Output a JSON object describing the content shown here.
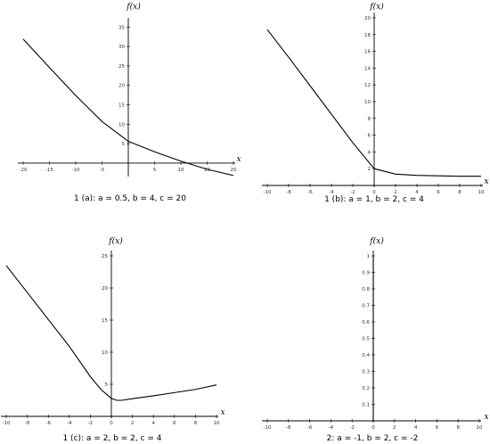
{
  "chart_data": [
    {
      "type": "line",
      "caption": "1 (a): a = 0.5, b = 4, c = 20",
      "xlabel": "x",
      "ylabel": "f(x)",
      "xlim": [
        -20,
        20
      ],
      "ylim": [
        -3,
        36
      ],
      "xticks": [
        -20,
        -15,
        -10,
        -5,
        5,
        10,
        15,
        20
      ],
      "yticks": [
        5,
        10,
        15,
        20,
        25,
        30,
        35
      ],
      "color": "#000000",
      "series": [
        {
          "x": [
            -20,
            -15,
            -10,
            -5,
            0,
            5,
            10,
            15,
            20
          ],
          "y": [
            31.9,
            24.6,
            17.4,
            10.7,
            5.6,
            2.9,
            0.5,
            -1.6,
            -3.2
          ]
        }
      ]
    },
    {
      "type": "line",
      "caption": "1 (b): a = 1, b = 2, c = 4",
      "xlabel": "x",
      "ylabel": "f(x)",
      "xlim": [
        -10,
        10
      ],
      "ylim": [
        0,
        20
      ],
      "xticks": [
        -10,
        -8,
        -6,
        -4,
        -2,
        0,
        2,
        4,
        6,
        8,
        10
      ],
      "yticks": [
        2,
        4,
        6,
        8,
        10,
        12,
        14,
        16,
        18,
        20
      ],
      "color": "#000000",
      "series": [
        {
          "x": [
            -10,
            -8,
            -6,
            -4,
            -2,
            0,
            2,
            4,
            6,
            8,
            10
          ],
          "y": [
            18.6,
            15.3,
            11.9,
            8.5,
            5.1,
            2.0,
            1.35,
            1.2,
            1.15,
            1.1,
            1.1
          ]
        }
      ]
    },
    {
      "type": "line",
      "caption": "1 (c): a = 2, b = 2, c = 4",
      "xlabel": "x",
      "ylabel": "f(x)",
      "xlim": [
        -10,
        10
      ],
      "ylim": [
        0,
        25
      ],
      "xticks": [
        -10,
        -8,
        -6,
        -4,
        -2,
        0,
        2,
        4,
        6,
        8,
        10
      ],
      "yticks": [
        5,
        10,
        15,
        20,
        25
      ],
      "color": "#000000",
      "series": [
        {
          "x": [
            -10,
            -8,
            -6,
            -4,
            -2,
            -1,
            0,
            0.5,
            1,
            2,
            4,
            6,
            8,
            10
          ],
          "y": [
            23.5,
            19.3,
            15.1,
            10.9,
            6.2,
            4.2,
            2.8,
            2.5,
            2.5,
            2.75,
            3.2,
            3.7,
            4.2,
            4.9
          ]
        }
      ]
    },
    {
      "type": "line",
      "caption": "2: a = -1, b = 2, c = -2",
      "xlabel": "x",
      "ylabel": "f(x)",
      "xlim": [
        -10,
        10
      ],
      "ylim": [
        0,
        1
      ],
      "xticks": [
        -10,
        -8,
        -6,
        -4,
        -2,
        0,
        2,
        4,
        6,
        8,
        10
      ],
      "yticks": [
        0.1,
        0.2,
        0.3,
        0.4,
        0.5,
        0.6,
        0.7,
        0.8,
        0.9,
        1
      ],
      "color": "#000000",
      "series": [
        {
          "x": [
            0,
            0
          ],
          "y": [
            0,
            1
          ]
        }
      ]
    }
  ]
}
